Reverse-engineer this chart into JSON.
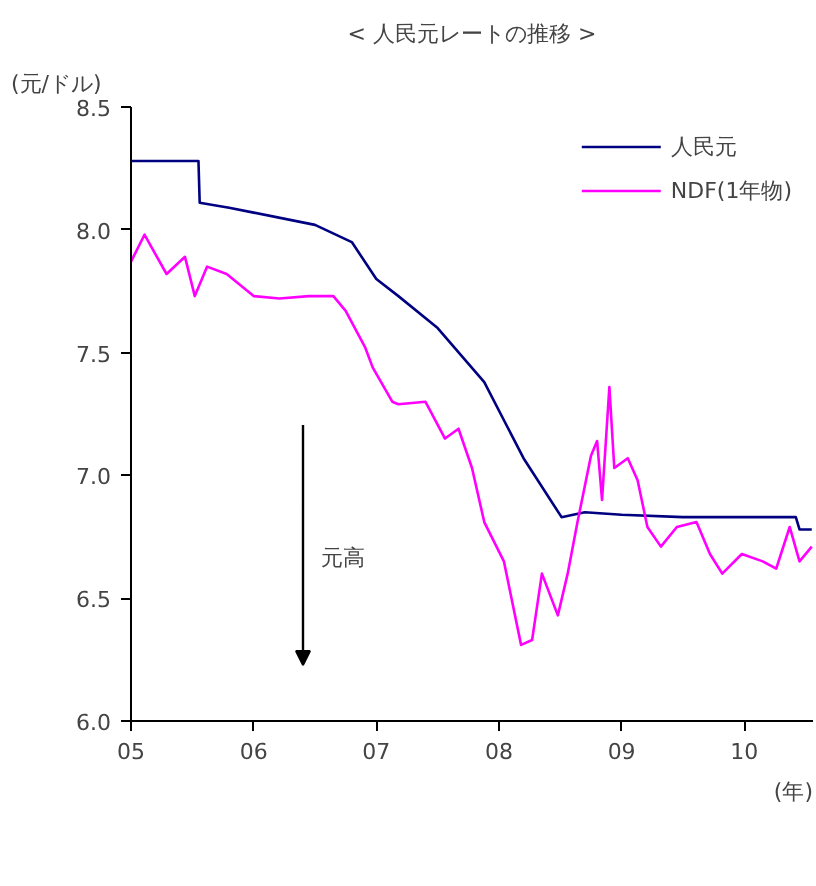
{
  "chart_data": {
    "type": "line",
    "title": "< 人民元レートの推移 >",
    "ylabel": "(元/ドル)",
    "xlabel": "(年)",
    "xlim": [
      2005,
      2010.56
    ],
    "ylim": [
      6.0,
      8.5
    ],
    "xticks": [
      {
        "value": 2005,
        "label": "05"
      },
      {
        "value": 2006,
        "label": "06"
      },
      {
        "value": 2007,
        "label": "07"
      },
      {
        "value": 2008,
        "label": "08"
      },
      {
        "value": 2009,
        "label": "09"
      },
      {
        "value": 2010,
        "label": "10"
      }
    ],
    "yticks": [
      {
        "value": 6.0,
        "label": "6.0"
      },
      {
        "value": 6.5,
        "label": "6.5"
      },
      {
        "value": 7.0,
        "label": "7.0"
      },
      {
        "value": 7.5,
        "label": "7.5"
      },
      {
        "value": 8.0,
        "label": "8.0"
      },
      {
        "value": 8.5,
        "label": "8.5"
      }
    ],
    "grid": false,
    "legend": "top right",
    "marker": "none",
    "line_style": "solid",
    "annotations": [
      "元高"
    ],
    "series": [
      {
        "name": "人民元",
        "color": "#000080",
        "x": [
          2005.0,
          2005.55,
          2005.56,
          2005.8,
          2006.0,
          2006.5,
          2006.8,
          2007.0,
          2007.18,
          2007.5,
          2007.88,
          2008.2,
          2008.51,
          2008.7,
          2009.0,
          2009.5,
          2010.0,
          2010.42,
          2010.45,
          2010.55
        ],
        "values": [
          8.28,
          8.28,
          8.11,
          8.09,
          8.07,
          8.02,
          7.95,
          7.8,
          7.73,
          7.6,
          7.38,
          7.07,
          6.83,
          6.85,
          6.84,
          6.83,
          6.83,
          6.83,
          6.78,
          6.78
        ]
      },
      {
        "name": "NDF(1年物)",
        "color": "#ff00ff",
        "x": [
          2005.0,
          2005.11,
          2005.29,
          2005.44,
          2005.52,
          2005.62,
          2005.78,
          2006.0,
          2006.21,
          2006.45,
          2006.65,
          2006.75,
          2006.91,
          2006.97,
          2007.13,
          2007.18,
          2007.4,
          2007.56,
          2007.67,
          2007.78,
          2007.88,
          2008.04,
          2008.18,
          2008.27,
          2008.35,
          2008.48,
          2008.56,
          2008.64,
          2008.75,
          2008.8,
          2008.84,
          2008.9,
          2008.94,
          2009.05,
          2009.13,
          2009.21,
          2009.32,
          2009.45,
          2009.61,
          2009.72,
          2009.82,
          2009.98,
          2010.15,
          2010.26,
          2010.37,
          2010.45,
          2010.55
        ],
        "values": [
          7.87,
          7.98,
          7.82,
          7.89,
          7.73,
          7.85,
          7.82,
          7.73,
          7.72,
          7.73,
          7.73,
          7.67,
          7.52,
          7.44,
          7.3,
          7.29,
          7.3,
          7.15,
          7.19,
          7.03,
          6.81,
          6.65,
          6.31,
          6.33,
          6.6,
          6.43,
          6.6,
          6.81,
          7.08,
          7.14,
          6.9,
          7.36,
          7.03,
          7.07,
          6.98,
          6.79,
          6.71,
          6.79,
          6.81,
          6.68,
          6.6,
          6.68,
          6.65,
          6.62,
          6.79,
          6.65,
          6.71
        ]
      }
    ]
  }
}
